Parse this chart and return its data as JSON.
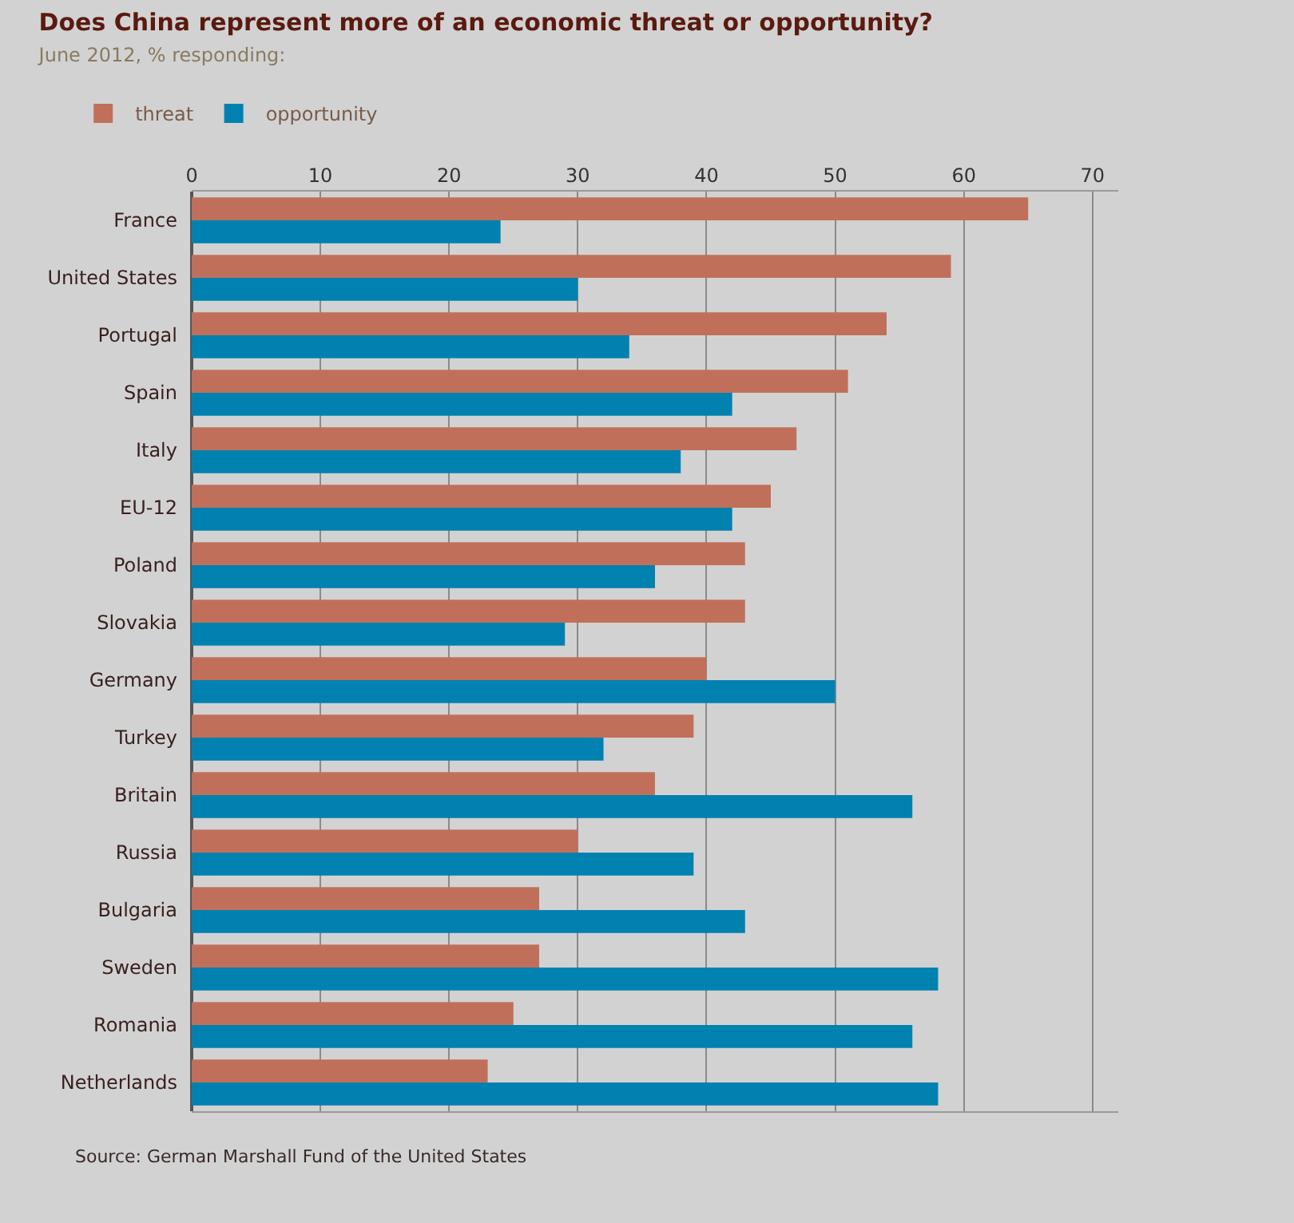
{
  "chart_data": {
    "type": "bar",
    "orientation": "horizontal",
    "title": "Does China represent more of an economic threat or opportunity?",
    "subtitle": "June 2012, % responding:",
    "categories": [
      "France",
      "United States",
      "Portugal",
      "Spain",
      "Italy",
      "EU-12",
      "Poland",
      "Slovakia",
      "Germany",
      "Turkey",
      "Britain",
      "Russia",
      "Bulgaria",
      "Sweden",
      "Romania",
      "Netherlands"
    ],
    "series": [
      {
        "name": "threat",
        "color": "#c0705a",
        "values": [
          65,
          59,
          54,
          51,
          47,
          45,
          43,
          43,
          40,
          39,
          36,
          30,
          27,
          27,
          25,
          23
        ]
      },
      {
        "name": "opportunity",
        "color": "#0081b0",
        "values": [
          24,
          30,
          34,
          42,
          38,
          42,
          36,
          29,
          50,
          32,
          56,
          39,
          43,
          58,
          56,
          58
        ]
      }
    ],
    "xlim": [
      0,
      72
    ],
    "xticks": [
      0,
      10,
      20,
      30,
      40,
      50,
      60,
      70
    ],
    "grid": "x",
    "legend": "top left",
    "annotations": [
      "Source: German Marshall Fund of the United States"
    ]
  }
}
